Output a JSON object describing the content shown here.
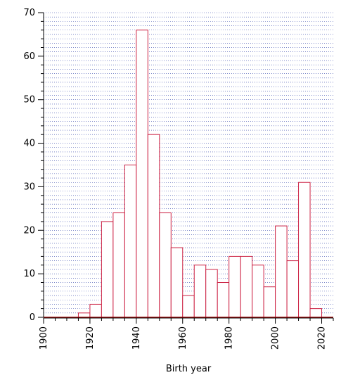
{
  "chart_data": {
    "type": "bar",
    "xlabel": "Birth year",
    "ylabel": "",
    "xlim": [
      1900,
      2025
    ],
    "ylim": [
      0,
      70
    ],
    "bin_width": 5,
    "x_ticks": [
      "1900",
      "1920",
      "1940",
      "1960",
      "1980",
      "2000",
      "2020"
    ],
    "y_ticks": [
      "0",
      "10",
      "20",
      "30",
      "40",
      "50",
      "60",
      "70"
    ],
    "grid": true,
    "bar_color": "#cc2244",
    "grid_color": "#3344aa",
    "bins": [
      {
        "start": 1915,
        "value": 1
      },
      {
        "start": 1920,
        "value": 3
      },
      {
        "start": 1925,
        "value": 22
      },
      {
        "start": 1930,
        "value": 24
      },
      {
        "start": 1935,
        "value": 35
      },
      {
        "start": 1940,
        "value": 66
      },
      {
        "start": 1945,
        "value": 42
      },
      {
        "start": 1950,
        "value": 24
      },
      {
        "start": 1955,
        "value": 16
      },
      {
        "start": 1960,
        "value": 5
      },
      {
        "start": 1965,
        "value": 12
      },
      {
        "start": 1970,
        "value": 11
      },
      {
        "start": 1975,
        "value": 8
      },
      {
        "start": 1980,
        "value": 14
      },
      {
        "start": 1985,
        "value": 14
      },
      {
        "start": 1990,
        "value": 12
      },
      {
        "start": 1995,
        "value": 7
      },
      {
        "start": 2000,
        "value": 21
      },
      {
        "start": 2005,
        "value": 13
      },
      {
        "start": 2010,
        "value": 31
      },
      {
        "start": 2015,
        "value": 2
      }
    ]
  }
}
